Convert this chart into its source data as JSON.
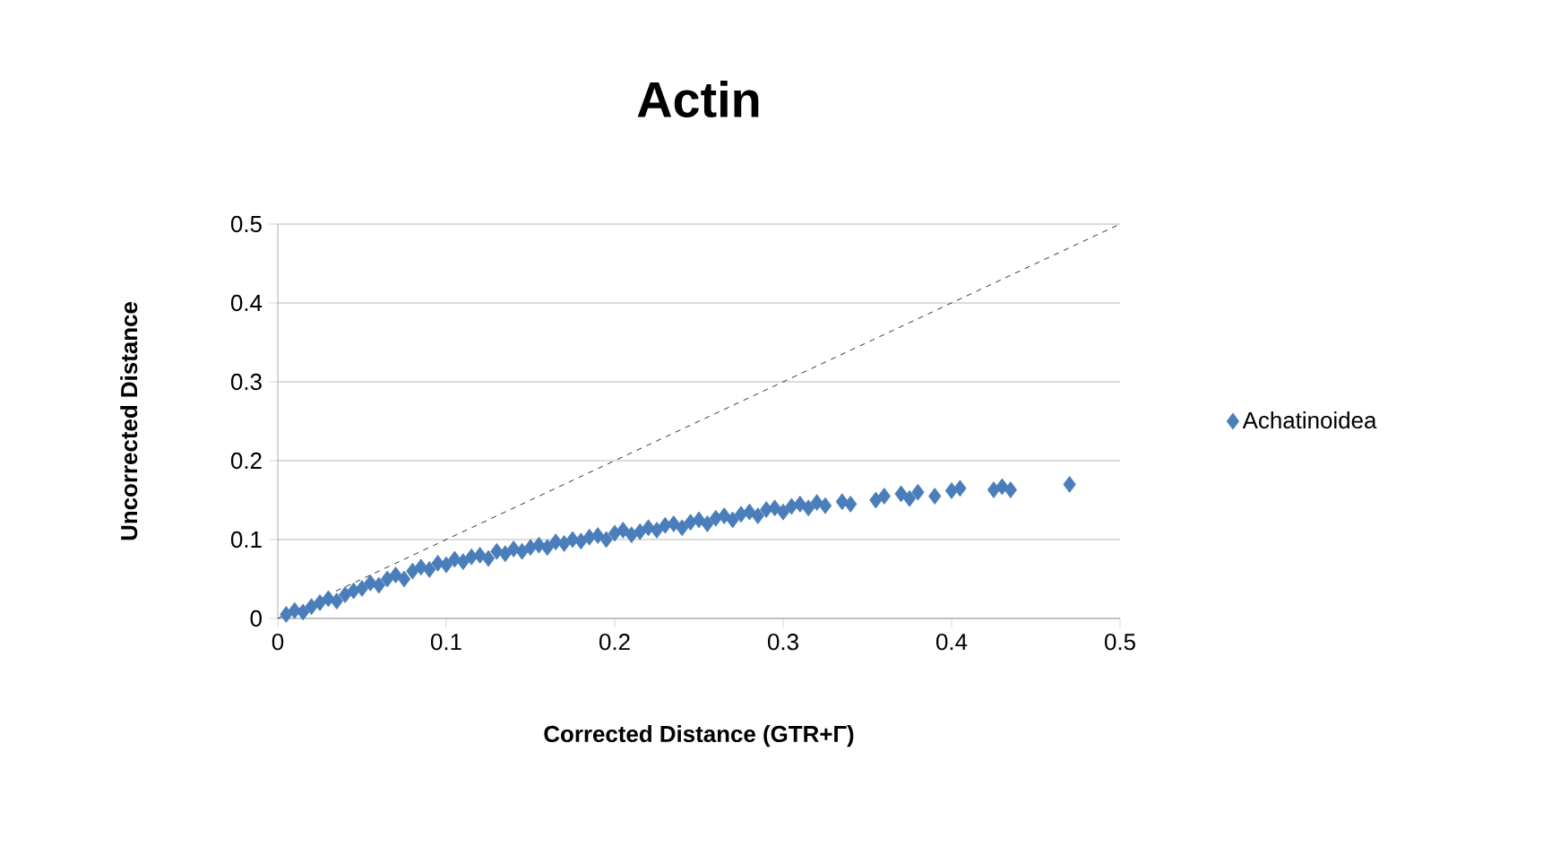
{
  "chart_data": {
    "type": "scatter",
    "title": "Actin",
    "xlabel": "Corrected Distance (GTR+Γ)",
    "ylabel": "Uncorrected Distance",
    "xlim": [
      0,
      0.5
    ],
    "ylim": [
      0,
      0.5
    ],
    "xticks": [
      0,
      0.1,
      0.2,
      0.3,
      0.4,
      0.5
    ],
    "yticks": [
      0,
      0.1,
      0.2,
      0.3,
      0.4,
      0.5
    ],
    "grid": "y",
    "legend": "right",
    "marker": "diamond",
    "series": [
      {
        "name": "Achatinoidea",
        "color": "#4a7ebb",
        "x": [
          0.005,
          0.01,
          0.015,
          0.02,
          0.025,
          0.03,
          0.035,
          0.04,
          0.045,
          0.05,
          0.055,
          0.06,
          0.065,
          0.07,
          0.075,
          0.08,
          0.085,
          0.09,
          0.095,
          0.1,
          0.105,
          0.11,
          0.115,
          0.12,
          0.125,
          0.13,
          0.135,
          0.14,
          0.145,
          0.15,
          0.155,
          0.16,
          0.165,
          0.17,
          0.175,
          0.18,
          0.185,
          0.19,
          0.195,
          0.2,
          0.205,
          0.21,
          0.215,
          0.22,
          0.225,
          0.23,
          0.235,
          0.24,
          0.245,
          0.25,
          0.255,
          0.26,
          0.265,
          0.27,
          0.275,
          0.28,
          0.285,
          0.29,
          0.295,
          0.3,
          0.305,
          0.31,
          0.315,
          0.32,
          0.325,
          0.335,
          0.34,
          0.355,
          0.36,
          0.37,
          0.375,
          0.38,
          0.39,
          0.4,
          0.405,
          0.425,
          0.43,
          0.435,
          0.47
        ],
        "values": [
          0.005,
          0.01,
          0.008,
          0.015,
          0.02,
          0.025,
          0.022,
          0.03,
          0.035,
          0.038,
          0.045,
          0.042,
          0.05,
          0.055,
          0.05,
          0.06,
          0.065,
          0.062,
          0.07,
          0.068,
          0.075,
          0.072,
          0.078,
          0.08,
          0.076,
          0.085,
          0.082,
          0.088,
          0.085,
          0.09,
          0.093,
          0.09,
          0.097,
          0.095,
          0.1,
          0.098,
          0.103,
          0.105,
          0.1,
          0.108,
          0.112,
          0.106,
          0.11,
          0.115,
          0.112,
          0.118,
          0.12,
          0.115,
          0.122,
          0.125,
          0.12,
          0.127,
          0.13,
          0.125,
          0.132,
          0.135,
          0.13,
          0.138,
          0.14,
          0.135,
          0.142,
          0.145,
          0.14,
          0.147,
          0.143,
          0.148,
          0.145,
          0.15,
          0.155,
          0.158,
          0.152,
          0.16,
          0.155,
          0.162,
          0.165,
          0.163,
          0.167,
          0.163,
          0.17
        ]
      },
      {
        "type": "line",
        "color": "#000000",
        "line_style": "dashed",
        "marker": "none",
        "x": [
          0,
          0.5
        ],
        "values": [
          0,
          0.5
        ]
      }
    ]
  }
}
